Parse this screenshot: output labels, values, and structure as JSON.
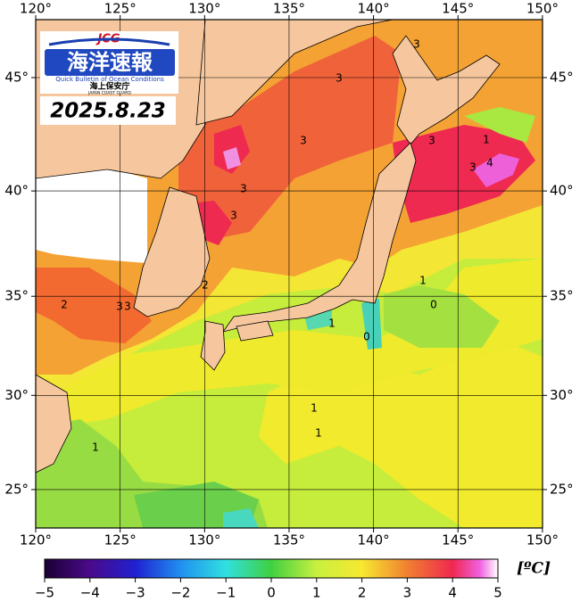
{
  "logo": {
    "mark": "JCG",
    "title": "海洋速報",
    "subtitle": "Quick Bulletin of Ocean Conditions",
    "agency": "海上保安庁",
    "agency_en": "JAPAN COAST GUARD",
    "date": "2025.8.23"
  },
  "map": {
    "lon_ticks": [
      {
        "value": 120,
        "label": "120°"
      },
      {
        "value": 125,
        "label": "125°"
      },
      {
        "value": 130,
        "label": "130°"
      },
      {
        "value": 135,
        "label": "135°"
      },
      {
        "value": 140,
        "label": "140°"
      },
      {
        "value": 145,
        "label": "145°"
      },
      {
        "value": 150,
        "label": "150°"
      }
    ],
    "lat_ticks": [
      {
        "value": 25,
        "label": "25°"
      },
      {
        "value": 30,
        "label": "30°"
      },
      {
        "value": 35,
        "label": "35°"
      },
      {
        "value": 40,
        "label": "40°"
      },
      {
        "value": 45,
        "label": "45°"
      }
    ],
    "contour_labels": [
      "3",
      "3",
      "3",
      "3",
      "3",
      "3",
      "3",
      "4",
      "1",
      "2",
      "2",
      "3",
      "3",
      "1",
      "0",
      "1",
      "0",
      "1",
      "1",
      "1"
    ]
  },
  "colorbar": {
    "range": [
      -5,
      5
    ],
    "ticks": [
      {
        "value": -5,
        "label": "−5"
      },
      {
        "value": -4,
        "label": "−4"
      },
      {
        "value": -3,
        "label": "−3"
      },
      {
        "value": -2,
        "label": "−2"
      },
      {
        "value": -1,
        "label": "−1"
      },
      0,
      1,
      2,
      3,
      4,
      5
    ],
    "unit": "[ºC]"
  }
}
